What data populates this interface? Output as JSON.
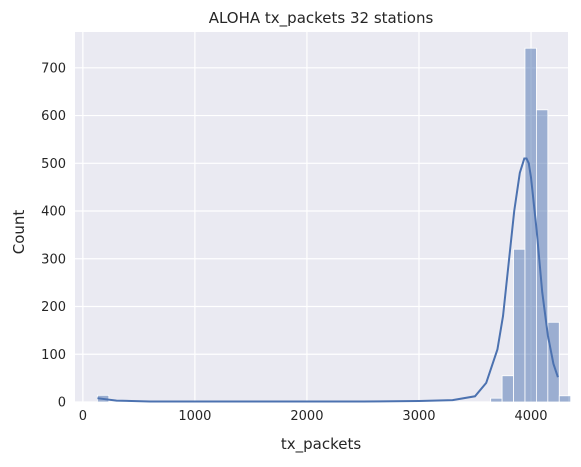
{
  "chart_data": {
    "type": "bar",
    "title": "ALOHA tx_packets 32 stations",
    "xlabel": "tx_packets",
    "ylabel": "Count",
    "xlim": [
      -70,
      4330
    ],
    "ylim": [
      0,
      775
    ],
    "x_ticks": [
      0,
      1000,
      2000,
      3000,
      4000
    ],
    "y_ticks": [
      0,
      100,
      200,
      300,
      400,
      500,
      600,
      700
    ],
    "grid": true,
    "bin_width": 102,
    "bins": [
      {
        "left": 130,
        "count": 14
      },
      {
        "left": 3640,
        "count": 8
      },
      {
        "left": 3742,
        "count": 55
      },
      {
        "left": 3844,
        "count": 320
      },
      {
        "left": 3946,
        "count": 741
      },
      {
        "left": 4048,
        "count": 612
      },
      {
        "left": 4150,
        "count": 167
      },
      {
        "left": 4252,
        "count": 13
      }
    ],
    "kde": {
      "x": [
        130,
        300,
        600,
        1000,
        1500,
        2000,
        2500,
        3000,
        3300,
        3500,
        3600,
        3700,
        3750,
        3800,
        3850,
        3900,
        3940,
        3960,
        3980,
        4000,
        4050,
        4100,
        4150,
        4200,
        4240
      ],
      "y": [
        8,
        3,
        1,
        1,
        1,
        1,
        1,
        2,
        4,
        12,
        40,
        110,
        180,
        290,
        400,
        480,
        510,
        510,
        500,
        470,
        360,
        230,
        140,
        80,
        52
      ]
    },
    "colors": {
      "background": "#eaeaf2",
      "bar": "#4c72b0",
      "bar_alpha": 0.5,
      "line": "#4c72b0",
      "grid": "#ffffff"
    }
  }
}
